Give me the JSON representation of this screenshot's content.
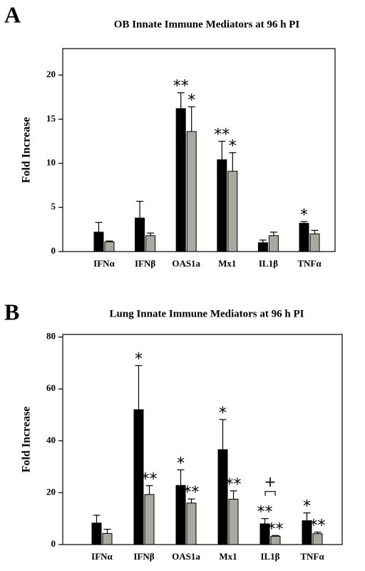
{
  "chart_data": [
    {
      "type": "bar",
      "panel": "A",
      "title": "OB Innate Immune Mediators at 96 h PI",
      "y_label": "Fold Increase",
      "categories": [
        "IFNα",
        "IFNβ",
        "OAS1a",
        "Mx1",
        "IL1β",
        "TNFα"
      ],
      "ylim": [
        0,
        23
      ],
      "yticks": [
        0,
        5,
        10,
        15,
        20
      ],
      "series": [
        {
          "color": "#000000",
          "values": [
            2.2,
            3.8,
            16.2,
            10.4,
            1.0,
            3.2
          ],
          "errors": [
            1.1,
            1.9,
            1.8,
            2.1,
            0.3,
            0.2
          ],
          "significance": [
            null,
            null,
            "**",
            "**",
            null,
            "*"
          ]
        },
        {
          "color": "#a9a9a1",
          "values": [
            1.1,
            1.8,
            13.6,
            9.1,
            1.8,
            2.0
          ],
          "errors": [
            0.1,
            0.3,
            2.8,
            2.1,
            0.4,
            0.4
          ],
          "significance": [
            null,
            null,
            "*",
            "*",
            null,
            null
          ]
        }
      ]
    },
    {
      "type": "bar",
      "panel": "B",
      "title": "Lung Innate Immune Mediators at 96 h PI",
      "y_label": "Fold Increase",
      "categories": [
        "IFNα",
        "IFNβ",
        "OAS1a",
        "Mx1",
        "IL1β",
        "TNFα"
      ],
      "ylim": [
        0,
        81
      ],
      "yticks": [
        0,
        20,
        40,
        60,
        80
      ],
      "series": [
        {
          "color": "#000000",
          "values": [
            8.3,
            52,
            22.8,
            36.6,
            8.0,
            9.2
          ],
          "errors": [
            3.0,
            17,
            6.0,
            11.6,
            2.0,
            3.0
          ],
          "significance": [
            null,
            "*",
            "*",
            "*",
            "**",
            "*"
          ]
        },
        {
          "color": "#a9a9a1",
          "values": [
            4.3,
            19.3,
            16.0,
            17.5,
            3.2,
            4.2
          ],
          "errors": [
            1.6,
            3.4,
            1.6,
            3.2,
            0.3,
            0.6
          ],
          "significance": [
            null,
            "**",
            "**",
            "**",
            "**",
            "**"
          ]
        }
      ],
      "bracket": {
        "text": "+",
        "category": "IL1β"
      }
    }
  ]
}
